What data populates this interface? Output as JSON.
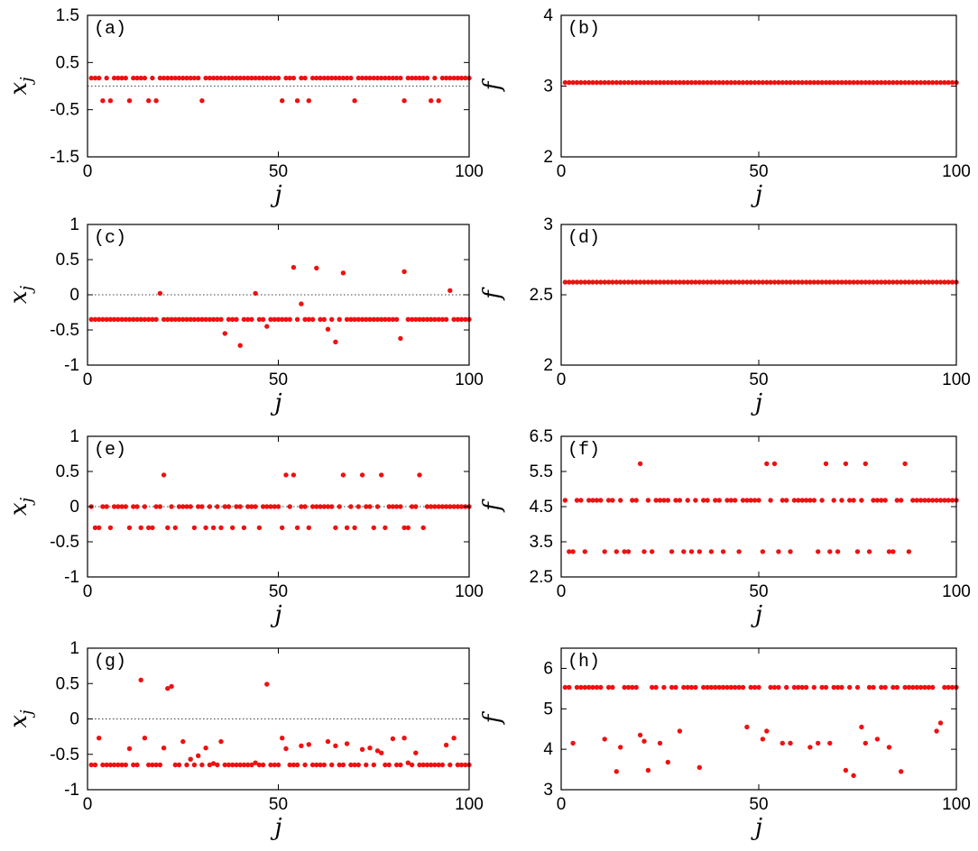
{
  "chart_data": [
    {
      "id": "a",
      "panel_label": "(a)",
      "type": "scatter",
      "xlabel": "j",
      "ylabel": "x_j",
      "xlim": [
        0,
        100
      ],
      "ylim": [
        -1.5,
        1.5
      ],
      "xticks": [
        0,
        50,
        100
      ],
      "xtick_labels": [
        "0",
        "50",
        "100"
      ],
      "yticks": [
        -1.5,
        -0.5,
        0.5,
        1.5
      ],
      "ytick_labels": [
        "-1.5",
        "-0.5",
        "0.5",
        "1.5"
      ],
      "ref_line": 0,
      "levels": [
        0.17,
        -0.31
      ],
      "low_indices": [
        4,
        6,
        11,
        16,
        18,
        30,
        51,
        55,
        58,
        70,
        83,
        90,
        92
      ]
    },
    {
      "id": "b",
      "panel_label": "(b)",
      "type": "scatter",
      "xlabel": "j",
      "ylabel": "f",
      "xlim": [
        0,
        100
      ],
      "ylim": [
        2,
        4
      ],
      "xticks": [
        0,
        50,
        100
      ],
      "xtick_labels": [
        "0",
        "50",
        "100"
      ],
      "yticks": [
        2,
        3,
        4
      ],
      "ytick_labels": [
        "2",
        "3",
        "4"
      ],
      "constant_value": 3.05
    },
    {
      "id": "c",
      "panel_label": "(c)",
      "type": "scatter",
      "xlabel": "j",
      "ylabel": "x_j",
      "xlim": [
        0,
        100
      ],
      "ylim": [
        -1,
        1
      ],
      "xticks": [
        0,
        50,
        100
      ],
      "xtick_labels": [
        "0",
        "50",
        "100"
      ],
      "yticks": [
        -1,
        -0.5,
        0,
        0.5,
        1
      ],
      "ytick_labels": [
        "-1",
        "-0.5",
        "0",
        "0.5",
        "1"
      ],
      "ref_line": 0,
      "base_value": -0.35,
      "outliers": [
        [
          19,
          0.02
        ],
        [
          36,
          -0.55
        ],
        [
          40,
          -0.72
        ],
        [
          44,
          0.02
        ],
        [
          47,
          -0.45
        ],
        [
          54,
          0.39
        ],
        [
          56,
          -0.13
        ],
        [
          60,
          0.38
        ],
        [
          63,
          -0.49
        ],
        [
          65,
          -0.67
        ],
        [
          67,
          0.31
        ],
        [
          82,
          -0.62
        ],
        [
          83,
          0.33
        ],
        [
          95,
          0.06
        ]
      ]
    },
    {
      "id": "d",
      "panel_label": "(d)",
      "type": "scatter",
      "xlabel": "j",
      "ylabel": "f",
      "xlim": [
        0,
        100
      ],
      "ylim": [
        2,
        3
      ],
      "xticks": [
        0,
        50,
        100
      ],
      "xtick_labels": [
        "0",
        "50",
        "100"
      ],
      "yticks": [
        2,
        2.5,
        3
      ],
      "ytick_labels": [
        "2",
        "2.5",
        "3"
      ],
      "constant_value": 2.59
    },
    {
      "id": "e",
      "panel_label": "(e)",
      "type": "scatter",
      "xlabel": "j",
      "ylabel": "x_j",
      "xlim": [
        0,
        100
      ],
      "ylim": [
        -1,
        1
      ],
      "xticks": [
        0,
        50,
        100
      ],
      "xtick_labels": [
        "0",
        "50",
        "100"
      ],
      "yticks": [
        -1,
        -0.5,
        0,
        0.5,
        1
      ],
      "ytick_labels": [
        "-1",
        "-0.5",
        "0",
        "0.5",
        "1"
      ],
      "ref_line": 0,
      "levels": [
        0.45,
        0.0,
        -0.3
      ],
      "high_indices": [
        20,
        52,
        54,
        67,
        72,
        77,
        87
      ],
      "low_indices": [
        2,
        3,
        6,
        11,
        14,
        16,
        17,
        21,
        23,
        28,
        31,
        33,
        35,
        38,
        41,
        45,
        51,
        55,
        58,
        65,
        68,
        70,
        75,
        78,
        83,
        84,
        88
      ]
    },
    {
      "id": "f",
      "panel_label": "(f)",
      "type": "scatter",
      "xlabel": "j",
      "ylabel": "f",
      "xlim": [
        0,
        100
      ],
      "ylim": [
        2.5,
        6.5
      ],
      "xticks": [
        0,
        50,
        100
      ],
      "xtick_labels": [
        "0",
        "50",
        "100"
      ],
      "yticks": [
        2.5,
        3.5,
        4.5,
        5.5,
        6.5
      ],
      "ytick_labels": [
        "2.5",
        "3.5",
        "4.5",
        "5.5",
        "6.5"
      ],
      "levels": [
        5.72,
        4.68,
        3.22
      ],
      "high_indices": [
        20,
        52,
        54,
        67,
        72,
        77,
        87
      ],
      "low_indices": [
        2,
        3,
        6,
        11,
        14,
        16,
        17,
        21,
        23,
        28,
        31,
        33,
        35,
        38,
        41,
        45,
        51,
        55,
        58,
        65,
        68,
        70,
        75,
        78,
        83,
        84,
        88
      ]
    },
    {
      "id": "g",
      "panel_label": "(g)",
      "type": "scatter",
      "xlabel": "j",
      "ylabel": "x_j",
      "xlim": [
        0,
        100
      ],
      "ylim": [
        -1,
        1
      ],
      "xticks": [
        0,
        50,
        100
      ],
      "xtick_labels": [
        "0",
        "50",
        "100"
      ],
      "yticks": [
        -1,
        -0.5,
        0,
        0.5,
        1
      ],
      "ytick_labels": [
        "-1",
        "-0.5",
        "0",
        "0.5",
        "1"
      ],
      "ref_line": 0,
      "base_value": -0.65,
      "outliers": [
        [
          3,
          -0.27
        ],
        [
          11,
          -0.42
        ],
        [
          14,
          0.55
        ],
        [
          15,
          -0.27
        ],
        [
          20,
          -0.41
        ],
        [
          21,
          0.43
        ],
        [
          22,
          0.46
        ],
        [
          25,
          -0.32
        ],
        [
          27,
          -0.57
        ],
        [
          29,
          -0.52
        ],
        [
          31,
          -0.41
        ],
        [
          33,
          -0.63
        ],
        [
          35,
          -0.32
        ],
        [
          44,
          -0.62
        ],
        [
          47,
          0.49
        ],
        [
          51,
          -0.27
        ],
        [
          52,
          -0.42
        ],
        [
          56,
          -0.38
        ],
        [
          58,
          -0.36
        ],
        [
          63,
          -0.32
        ],
        [
          65,
          -0.38
        ],
        [
          68,
          -0.35
        ],
        [
          72,
          -0.43
        ],
        [
          74,
          -0.41
        ],
        [
          76,
          -0.45
        ],
        [
          77,
          -0.48
        ],
        [
          80,
          -0.28
        ],
        [
          83,
          -0.27
        ],
        [
          84,
          -0.62
        ],
        [
          86,
          -0.48
        ],
        [
          94,
          -0.37
        ],
        [
          96,
          -0.27
        ]
      ]
    },
    {
      "id": "h",
      "panel_label": "(h)",
      "type": "scatter",
      "xlabel": "j",
      "ylabel": "f",
      "xlim": [
        0,
        100
      ],
      "ylim": [
        3,
        6.5
      ],
      "xticks": [
        0,
        50,
        100
      ],
      "xtick_labels": [
        "0",
        "50",
        "100"
      ],
      "yticks": [
        3,
        4,
        5,
        6
      ],
      "ytick_labels": [
        "3",
        "4",
        "5",
        "6"
      ],
      "base_value": 5.53,
      "outliers": [
        [
          3,
          4.15
        ],
        [
          11,
          4.25
        ],
        [
          14,
          3.45
        ],
        [
          15,
          4.05
        ],
        [
          20,
          4.35
        ],
        [
          21,
          4.2
        ],
        [
          22,
          3.48
        ],
        [
          25,
          4.15
        ],
        [
          27,
          3.68
        ],
        [
          30,
          4.45
        ],
        [
          35,
          3.55
        ],
        [
          47,
          4.55
        ],
        [
          51,
          4.25
        ],
        [
          52,
          4.45
        ],
        [
          56,
          4.15
        ],
        [
          58,
          4.15
        ],
        [
          63,
          4.05
        ],
        [
          65,
          4.15
        ],
        [
          68,
          4.15
        ],
        [
          72,
          3.48
        ],
        [
          74,
          3.35
        ],
        [
          76,
          4.55
        ],
        [
          77,
          4.15
        ],
        [
          80,
          4.25
        ],
        [
          83,
          4.05
        ],
        [
          86,
          3.45
        ],
        [
          95,
          4.45
        ],
        [
          96,
          4.65
        ]
      ]
    }
  ]
}
